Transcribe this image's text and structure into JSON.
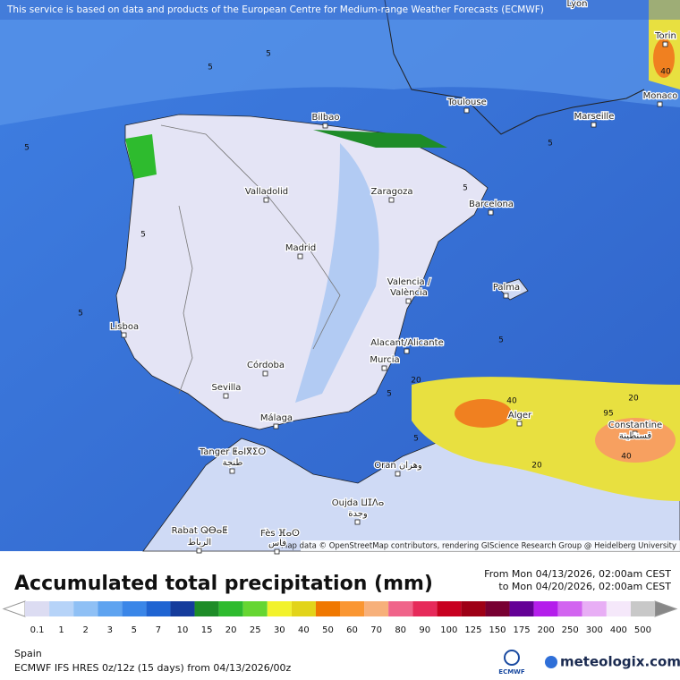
{
  "header_note": "This service is based on data and products of the European Centre for Medium-range Weather Forecasts (ECMWF)",
  "map": {
    "attribution": "Map data © OpenStreetMap contributors, rendering GIScience Research Group @ Heidelberg University",
    "cities": [
      "Lyon",
      "Torin",
      "Monaco",
      "Toulouse",
      "Marseille",
      "Bilbao",
      "Valladolid",
      "Zaragoza",
      "Barcelona",
      "Madrid",
      "Valencia /",
      "València",
      "Palma",
      "Lisboa",
      "Alacant/Alicante",
      "Murcia",
      "Córdoba",
      "Sevilla",
      "Málaga",
      "Alger",
      "Constantine",
      "قسنطينة",
      "Tanger ⵟⴰⵏⴳⵉⵔ",
      "طنجة",
      "Oran وهران",
      "Oujda ⵡⵊⴷⴰ",
      "وجدة",
      "Rabat ⵕⴱⴰⵟ",
      "الرباط",
      "Fès ⴼⴰⵙ",
      "فاس"
    ],
    "contour_labels": [
      "5",
      "5",
      "5",
      "5",
      "5",
      "5",
      "5",
      "5",
      "5",
      "20",
      "40",
      "40",
      "95",
      "20",
      "20",
      "40",
      "5"
    ]
  },
  "legend": {
    "title": "Accumulated total precipitation (mm)",
    "from": "From Mon 04/13/2026, 02:00am CEST",
    "to": "to Mon 04/20/2026, 02:00am CEST",
    "scale": [
      {
        "label": "0.1",
        "color": "#dcdcf2"
      },
      {
        "label": "1",
        "color": "#b6d3f8"
      },
      {
        "label": "2",
        "color": "#8fc0f5"
      },
      {
        "label": "3",
        "color": "#5ea3f0"
      },
      {
        "label": "5",
        "color": "#3a86e8"
      },
      {
        "label": "7",
        "color": "#1f64d2"
      },
      {
        "label": "10",
        "color": "#153c9c"
      },
      {
        "label": "15",
        "color": "#1e8c28"
      },
      {
        "label": "20",
        "color": "#2ebb2e"
      },
      {
        "label": "25",
        "color": "#66d632"
      },
      {
        "label": "30",
        "color": "#f2f22c"
      },
      {
        "label": "40",
        "color": "#e2d41a"
      },
      {
        "label": "50",
        "color": "#f07800"
      },
      {
        "label": "60",
        "color": "#fa9632"
      },
      {
        "label": "70",
        "color": "#f7b07a"
      },
      {
        "label": "80",
        "color": "#f0648a"
      },
      {
        "label": "90",
        "color": "#e62a5a"
      },
      {
        "label": "100",
        "color": "#c80020"
      },
      {
        "label": "125",
        "color": "#9e0016"
      },
      {
        "label": "150",
        "color": "#780032"
      },
      {
        "label": "175",
        "color": "#640096"
      },
      {
        "label": "200",
        "color": "#b41eeb"
      },
      {
        "label": "250",
        "color": "#d264f0"
      },
      {
        "label": "300",
        "color": "#e8aef5"
      },
      {
        "label": "400",
        "color": "#f5e8fa"
      },
      {
        "label": "500",
        "color": "#c8c8c8"
      }
    ]
  },
  "footer": {
    "region": "Spain",
    "model": "ECMWF IFS HRES 0z/12z (15 days) from  04/13/2026/00z",
    "ecmwf_logo": "ECMWF",
    "brand": "meteologix.com"
  }
}
